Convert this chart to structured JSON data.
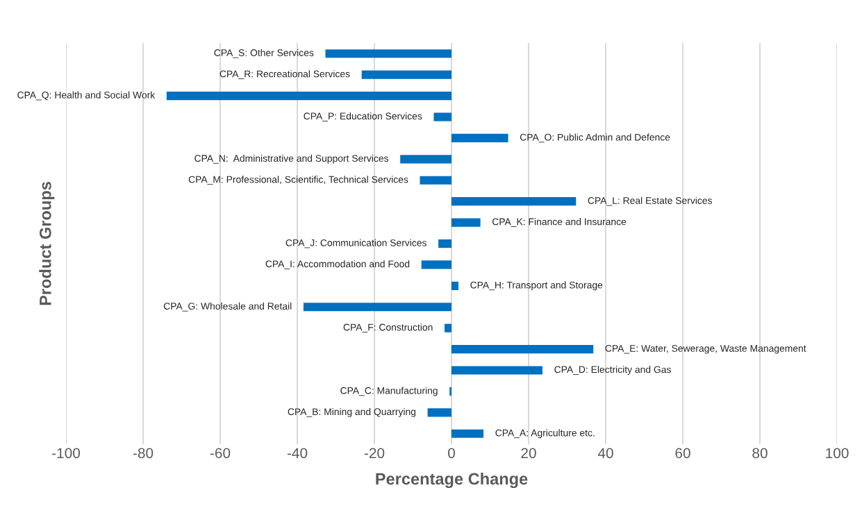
{
  "chart_data": {
    "type": "bar",
    "orientation": "horizontal",
    "xlabel": "Percentage Change",
    "ylabel": "Product Groups",
    "categories": [
      "CPA_S: Other Services",
      "CPA_R: Recreational Services",
      "CPA_Q: Health and Social Work",
      "CPA_P: Education Services",
      "CPA_O: Public Admin and Defence",
      "CPA_N:  Administrative and Support Services",
      "CPA_M: Professional, Scientific, Technical Services",
      "CPA_L: Real Estate Services",
      "CPA_K: Finance and Insurance",
      "CPA_J: Communication Services",
      "CPA_I: Accommodation and Food",
      "CPA_H: Transport and Storage",
      "CPA_G: Wholesale and Retail",
      "CPA_F: Construction",
      "CPA_E: Water, Sewerage, Waste Management",
      "CPA_D: Electricity and Gas",
      "CPA_C: Manufacturing",
      "CPA_B: Mining and Quarrying",
      "CPA_A: Agriculture etc."
    ],
    "values": [
      -32.7,
      -23.3,
      -73.9,
      -4.6,
      14.7,
      -13.3,
      -8.2,
      32.3,
      7.5,
      -3.4,
      -7.8,
      1.8,
      -38.4,
      -1.8,
      36.8,
      23.6,
      -0.5,
      -6.2,
      8.3
    ],
    "color": "#0070c0",
    "xlim": [
      -100,
      100
    ],
    "xticks": [
      -100,
      -80,
      -60,
      -40,
      -20,
      0,
      20,
      40,
      60,
      80,
      100
    ],
    "grid": "x",
    "tick_labels": "x"
  }
}
